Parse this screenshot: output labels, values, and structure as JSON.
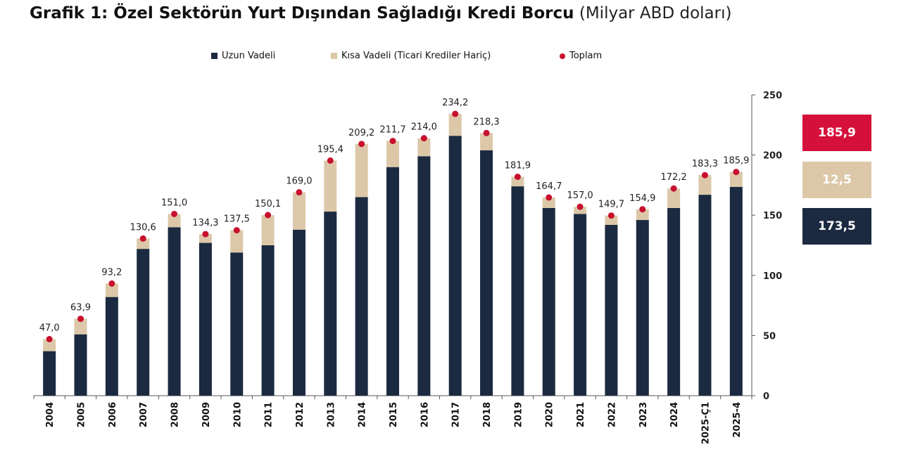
{
  "title": {
    "bold": "Grafik 1: Özel Sektörün Yurt Dışından Sağladığı Kredi Borcu",
    "unit": "(Milyar ABD doları)"
  },
  "colors": {
    "long_term": "#1b2a40",
    "short_term": "#dcc8a9",
    "total": "#c8102e"
  },
  "legend": [
    {
      "label": "Uzun Vadeli",
      "marker": "square",
      "color": "#1b2a40"
    },
    {
      "label": "Kısa Vadeli (Ticari Krediler Hariç)",
      "marker": "square",
      "color": "#dcc8a9"
    },
    {
      "label": "Toplam",
      "marker": "dot",
      "color": "#c8102e"
    }
  ],
  "summary_boxes": [
    {
      "value": "185,9",
      "color": "#d5103a"
    },
    {
      "value": "12,5",
      "color": "#dcc8a9"
    },
    {
      "value": "173,5",
      "color": "#1b2a40"
    }
  ],
  "chart_data": {
    "type": "bar",
    "stacked": true,
    "categories": [
      "2004",
      "2005",
      "2006",
      "2007",
      "2008",
      "2009",
      "2010",
      "2011",
      "2012",
      "2013",
      "2014",
      "2015",
      "2016",
      "2017",
      "2018",
      "2019",
      "2020",
      "2021",
      "2022",
      "2023",
      "2024",
      "2025-Ç1",
      "2025-4"
    ],
    "series": [
      {
        "name": "Uzun Vadeli",
        "values": [
          37,
          51,
          82,
          122,
          140,
          127,
          119,
          125,
          138,
          153,
          165,
          190,
          199,
          216,
          204,
          174,
          156,
          151,
          142,
          146,
          156,
          167,
          173.5
        ]
      },
      {
        "name": "Kısa Vadeli (Ticari Krediler Hariç)",
        "values": [
          10.0,
          12.9,
          11.2,
          8.6,
          11.0,
          7.3,
          18.5,
          25.1,
          31.0,
          42.4,
          44.2,
          21.7,
          15.0,
          18.2,
          14.3,
          7.9,
          8.7,
          6.0,
          7.7,
          8.9,
          16.2,
          16.3,
          12.5
        ]
      }
    ],
    "totals": {
      "name": "Toplam",
      "values": [
        47.0,
        63.9,
        93.2,
        130.6,
        151.0,
        134.3,
        137.5,
        150.1,
        169.0,
        195.4,
        209.2,
        211.7,
        214.0,
        234.2,
        218.3,
        181.9,
        164.7,
        157.0,
        149.7,
        154.9,
        172.2,
        183.3,
        185.9
      ],
      "labels": [
        "47,0",
        "63,9",
        "93,2",
        "130,6",
        "151,0",
        "134,3",
        "137,5",
        "150,1",
        "169,0",
        "195,4",
        "209,2",
        "211,7",
        "214,0",
        "234,2",
        "218,3",
        "181,9",
        "164,7",
        "157,0",
        "149,7",
        "154,9",
        "172,2",
        "183,3",
        "185,9"
      ]
    },
    "y_axis": {
      "position": "right",
      "ylim": [
        0,
        250
      ],
      "ticks": [
        0,
        50,
        100,
        150,
        200,
        250
      ],
      "tick_labels": [
        "0",
        "50",
        "100",
        "150",
        "200",
        "250"
      ]
    },
    "legend_position": "top",
    "grid": false
  }
}
